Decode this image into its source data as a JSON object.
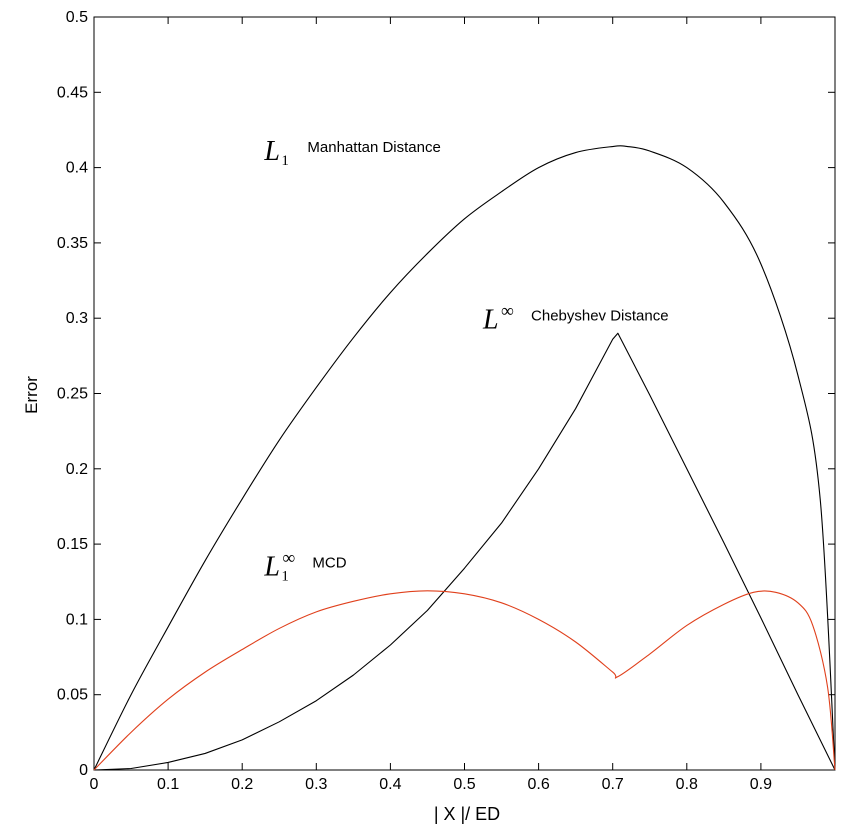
{
  "chart_data": {
    "type": "line",
    "title": "",
    "xlabel": "| X |/ ED",
    "ylabel": "Error",
    "xlim": [
      0,
      1
    ],
    "ylim": [
      0,
      0.5
    ],
    "xticks": [
      "0",
      "0.1",
      "0.2",
      "0.3",
      "0.4",
      "0.5",
      "0.6",
      "0.7",
      "0.8",
      "0.9"
    ],
    "yticks": [
      "0",
      "0.05",
      "0.1",
      "0.15",
      "0.2",
      "0.25",
      "0.3",
      "0.35",
      "0.4",
      "0.45",
      "0.5"
    ],
    "grid": false,
    "series": [
      {
        "name": "L1 Manhattan Distance",
        "color": "#000000",
        "x": [
          0,
          0.05,
          0.1,
          0.15,
          0.2,
          0.25,
          0.3,
          0.35,
          0.4,
          0.45,
          0.5,
          0.55,
          0.6,
          0.65,
          0.7,
          0.72,
          0.75,
          0.8,
          0.85,
          0.9,
          0.95,
          0.98,
          1.0
        ],
        "y": [
          0,
          0.05,
          0.095,
          0.139,
          0.18,
          0.219,
          0.254,
          0.287,
          0.317,
          0.343,
          0.366,
          0.384,
          0.4,
          0.41,
          0.414,
          0.414,
          0.411,
          0.4,
          0.377,
          0.336,
          0.262,
          0.18,
          0
        ]
      },
      {
        "name": "L∞ Chebyshev Distance",
        "color": "#000000",
        "x": [
          0,
          0.05,
          0.1,
          0.15,
          0.2,
          0.25,
          0.3,
          0.35,
          0.4,
          0.45,
          0.5,
          0.55,
          0.6,
          0.65,
          0.7,
          0.707,
          0.75,
          0.8,
          0.85,
          0.9,
          0.95,
          1.0
        ],
        "y": [
          0,
          0.001,
          0.005,
          0.011,
          0.02,
          0.032,
          0.046,
          0.063,
          0.083,
          0.106,
          0.134,
          0.164,
          0.2,
          0.24,
          0.286,
          0.29,
          0.249,
          0.2,
          0.151,
          0.101,
          0.05,
          0
        ]
      },
      {
        "name": "L1∞ MCD",
        "color": "#e0401c",
        "x": [
          0,
          0.05,
          0.1,
          0.15,
          0.2,
          0.25,
          0.3,
          0.35,
          0.4,
          0.45,
          0.5,
          0.55,
          0.6,
          0.65,
          0.7,
          0.707,
          0.75,
          0.8,
          0.85,
          0.89,
          0.92,
          0.95,
          0.97,
          0.99,
          1.0
        ],
        "y": [
          0,
          0.025,
          0.047,
          0.065,
          0.08,
          0.094,
          0.105,
          0.112,
          0.117,
          0.119,
          0.117,
          0.111,
          0.1,
          0.085,
          0.065,
          0.062,
          0.077,
          0.096,
          0.11,
          0.118,
          0.118,
          0.111,
          0.096,
          0.055,
          0
        ]
      }
    ],
    "annotations": [
      {
        "symbol": "L",
        "sub": "1",
        "sup": "",
        "text": "Manhattan Distance",
        "x": 0.23,
        "y": 0.405
      },
      {
        "symbol": "L",
        "sub": "",
        "sup": "∞",
        "text": "Chebyshev Distance",
        "x": 0.525,
        "y": 0.293
      },
      {
        "symbol": "L",
        "sub": "1",
        "sup": "∞",
        "text": "MCD",
        "x": 0.23,
        "y": 0.129
      }
    ]
  }
}
